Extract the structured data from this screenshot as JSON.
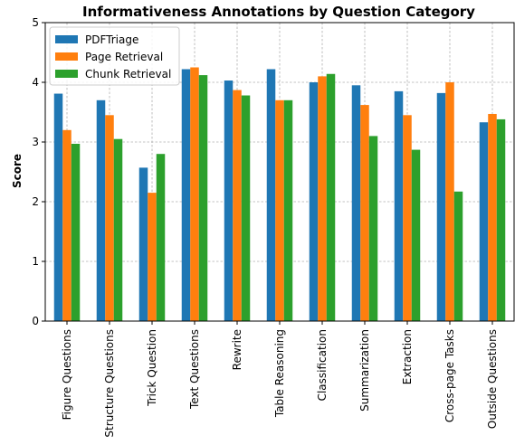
{
  "chart_data": {
    "type": "bar",
    "title": "Informativeness Annotations by Question Category",
    "xlabel": "",
    "ylabel": "Score",
    "ylim": [
      0,
      5
    ],
    "yticks": [
      0,
      1,
      2,
      3,
      4,
      5
    ],
    "grid": true,
    "legend_position": "top-left",
    "categories": [
      "Figure Questions",
      "Structure Questions",
      "Trick Question",
      "Text Questions",
      "Rewrite",
      "Table Reasoning",
      "Classification",
      "Summarization",
      "Extraction",
      "Cross-page Tasks",
      "Outside Questions"
    ],
    "series": [
      {
        "name": "PDFTriage",
        "color": "#1f77b4",
        "values": [
          3.81,
          3.7,
          2.57,
          4.22,
          4.03,
          4.22,
          4.0,
          3.95,
          3.85,
          3.82,
          3.33
        ]
      },
      {
        "name": "Page Retrieval",
        "color": "#ff7f0e",
        "values": [
          3.2,
          3.45,
          2.15,
          4.25,
          3.87,
          3.7,
          4.1,
          3.62,
          3.45,
          4.0,
          3.47
        ]
      },
      {
        "name": "Chunk Retrieval",
        "color": "#2ca02c",
        "values": [
          2.97,
          3.05,
          2.8,
          4.12,
          3.78,
          3.7,
          4.14,
          3.1,
          2.87,
          2.17,
          3.38
        ]
      }
    ]
  }
}
